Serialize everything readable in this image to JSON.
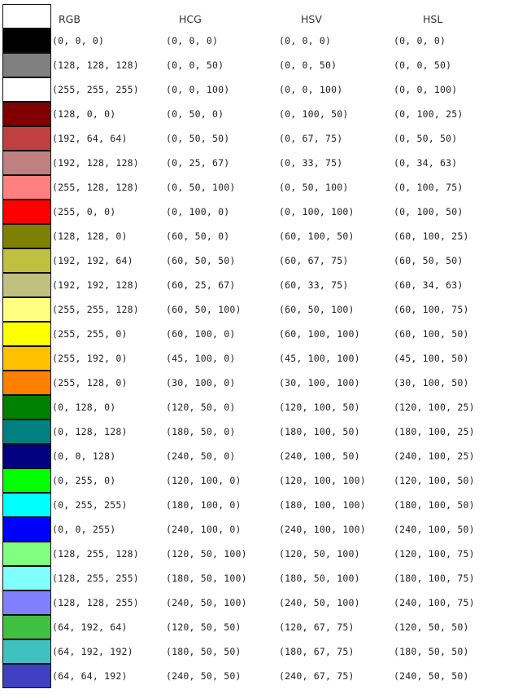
{
  "headers": {
    "rgb": "RGB",
    "hcg": "HCG",
    "hsv": "HSV",
    "hsl": "HSL"
  },
  "header_swatch_color": "#ffffff",
  "rows": [
    {
      "color": "#000000",
      "rgb": "(0, 0, 0)",
      "hcg": "(0, 0, 0)",
      "hsv": "(0, 0, 0)",
      "hsl": "(0, 0, 0)"
    },
    {
      "color": "#808080",
      "rgb": "(128, 128, 128)",
      "hcg": "(0, 0, 50)",
      "hsv": "(0, 0, 50)",
      "hsl": "(0, 0, 50)"
    },
    {
      "color": "#ffffff",
      "rgb": "(255, 255, 255)",
      "hcg": "(0, 0, 100)",
      "hsv": "(0, 0, 100)",
      "hsl": "(0, 0, 100)"
    },
    {
      "color": "#800000",
      "rgb": "(128, 0, 0)",
      "hcg": "(0, 50, 0)",
      "hsv": "(0, 100, 50)",
      "hsl": "(0, 100, 25)"
    },
    {
      "color": "#c04040",
      "rgb": "(192, 64, 64)",
      "hcg": "(0, 50, 50)",
      "hsv": "(0, 67, 75)",
      "hsl": "(0, 50, 50)"
    },
    {
      "color": "#c08080",
      "rgb": "(192, 128, 128)",
      "hcg": "(0, 25, 67)",
      "hsv": "(0, 33, 75)",
      "hsl": "(0, 34, 63)"
    },
    {
      "color": "#ff8080",
      "rgb": "(255, 128, 128)",
      "hcg": "(0, 50, 100)",
      "hsv": "(0, 50, 100)",
      "hsl": "(0, 100, 75)"
    },
    {
      "color": "#ff0000",
      "rgb": "(255, 0, 0)",
      "hcg": "(0, 100, 0)",
      "hsv": "(0, 100, 100)",
      "hsl": "(0, 100, 50)"
    },
    {
      "color": "#808000",
      "rgb": "(128, 128, 0)",
      "hcg": "(60, 50, 0)",
      "hsv": "(60, 100, 50)",
      "hsl": "(60, 100, 25)"
    },
    {
      "color": "#c0c040",
      "rgb": "(192, 192, 64)",
      "hcg": "(60, 50, 50)",
      "hsv": "(60, 67, 75)",
      "hsl": "(60, 50, 50)"
    },
    {
      "color": "#c0c080",
      "rgb": "(192, 192, 128)",
      "hcg": "(60, 25, 67)",
      "hsv": "(60, 33, 75)",
      "hsl": "(60, 34, 63)"
    },
    {
      "color": "#ffff80",
      "rgb": "(255, 255, 128)",
      "hcg": "(60, 50, 100)",
      "hsv": "(60, 50, 100)",
      "hsl": "(60, 100, 75)"
    },
    {
      "color": "#ffff00",
      "rgb": "(255, 255, 0)",
      "hcg": "(60, 100, 0)",
      "hsv": "(60, 100, 100)",
      "hsl": "(60, 100, 50)"
    },
    {
      "color": "#ffc000",
      "rgb": "(255, 192, 0)",
      "hcg": "(45, 100, 0)",
      "hsv": "(45, 100, 100)",
      "hsl": "(45, 100, 50)"
    },
    {
      "color": "#ff8000",
      "rgb": "(255, 128, 0)",
      "hcg": "(30, 100, 0)",
      "hsv": "(30, 100, 100)",
      "hsl": "(30, 100, 50)"
    },
    {
      "color": "#008000",
      "rgb": "(0, 128, 0)",
      "hcg": "(120, 50, 0)",
      "hsv": "(120, 100, 50)",
      "hsl": "(120, 100, 25)"
    },
    {
      "color": "#008080",
      "rgb": "(0, 128, 128)",
      "hcg": "(180, 50, 0)",
      "hsv": "(180, 100, 50)",
      "hsl": "(180, 100, 25)"
    },
    {
      "color": "#000080",
      "rgb": "(0, 0, 128)",
      "hcg": "(240, 50, 0)",
      "hsv": "(240, 100, 50)",
      "hsl": "(240, 100, 25)"
    },
    {
      "color": "#00ff00",
      "rgb": "(0, 255, 0)",
      "hcg": "(120, 100, 0)",
      "hsv": "(120, 100, 100)",
      "hsl": "(120, 100, 50)"
    },
    {
      "color": "#00ffff",
      "rgb": "(0, 255, 255)",
      "hcg": "(180, 100, 0)",
      "hsv": "(180, 100, 100)",
      "hsl": "(180, 100, 50)"
    },
    {
      "color": "#0000ff",
      "rgb": "(0, 0, 255)",
      "hcg": "(240, 100, 0)",
      "hsv": "(240, 100, 100)",
      "hsl": "(240, 100, 50)"
    },
    {
      "color": "#80ff80",
      "rgb": "(128, 255, 128)",
      "hcg": "(120, 50, 100)",
      "hsv": "(120, 50, 100)",
      "hsl": "(120, 100, 75)"
    },
    {
      "color": "#80ffff",
      "rgb": "(128, 255, 255)",
      "hcg": "(180, 50, 100)",
      "hsv": "(180, 50, 100)",
      "hsl": "(180, 100, 75)"
    },
    {
      "color": "#8080ff",
      "rgb": "(128, 128, 255)",
      "hcg": "(240, 50, 100)",
      "hsv": "(240, 50, 100)",
      "hsl": "(240, 100, 75)"
    },
    {
      "color": "#40c040",
      "rgb": "(64, 192, 64)",
      "hcg": "(120, 50, 50)",
      "hsv": "(120, 67, 75)",
      "hsl": "(120, 50, 50)"
    },
    {
      "color": "#40c0c0",
      "rgb": "(64, 192, 192)",
      "hcg": "(180, 50, 50)",
      "hsv": "(180, 67, 75)",
      "hsl": "(180, 50, 50)"
    },
    {
      "color": "#4040c0",
      "rgb": "(64, 64, 192)",
      "hcg": "(240, 50, 50)",
      "hsv": "(240, 67, 75)",
      "hsl": "(240, 50, 50)"
    }
  ]
}
